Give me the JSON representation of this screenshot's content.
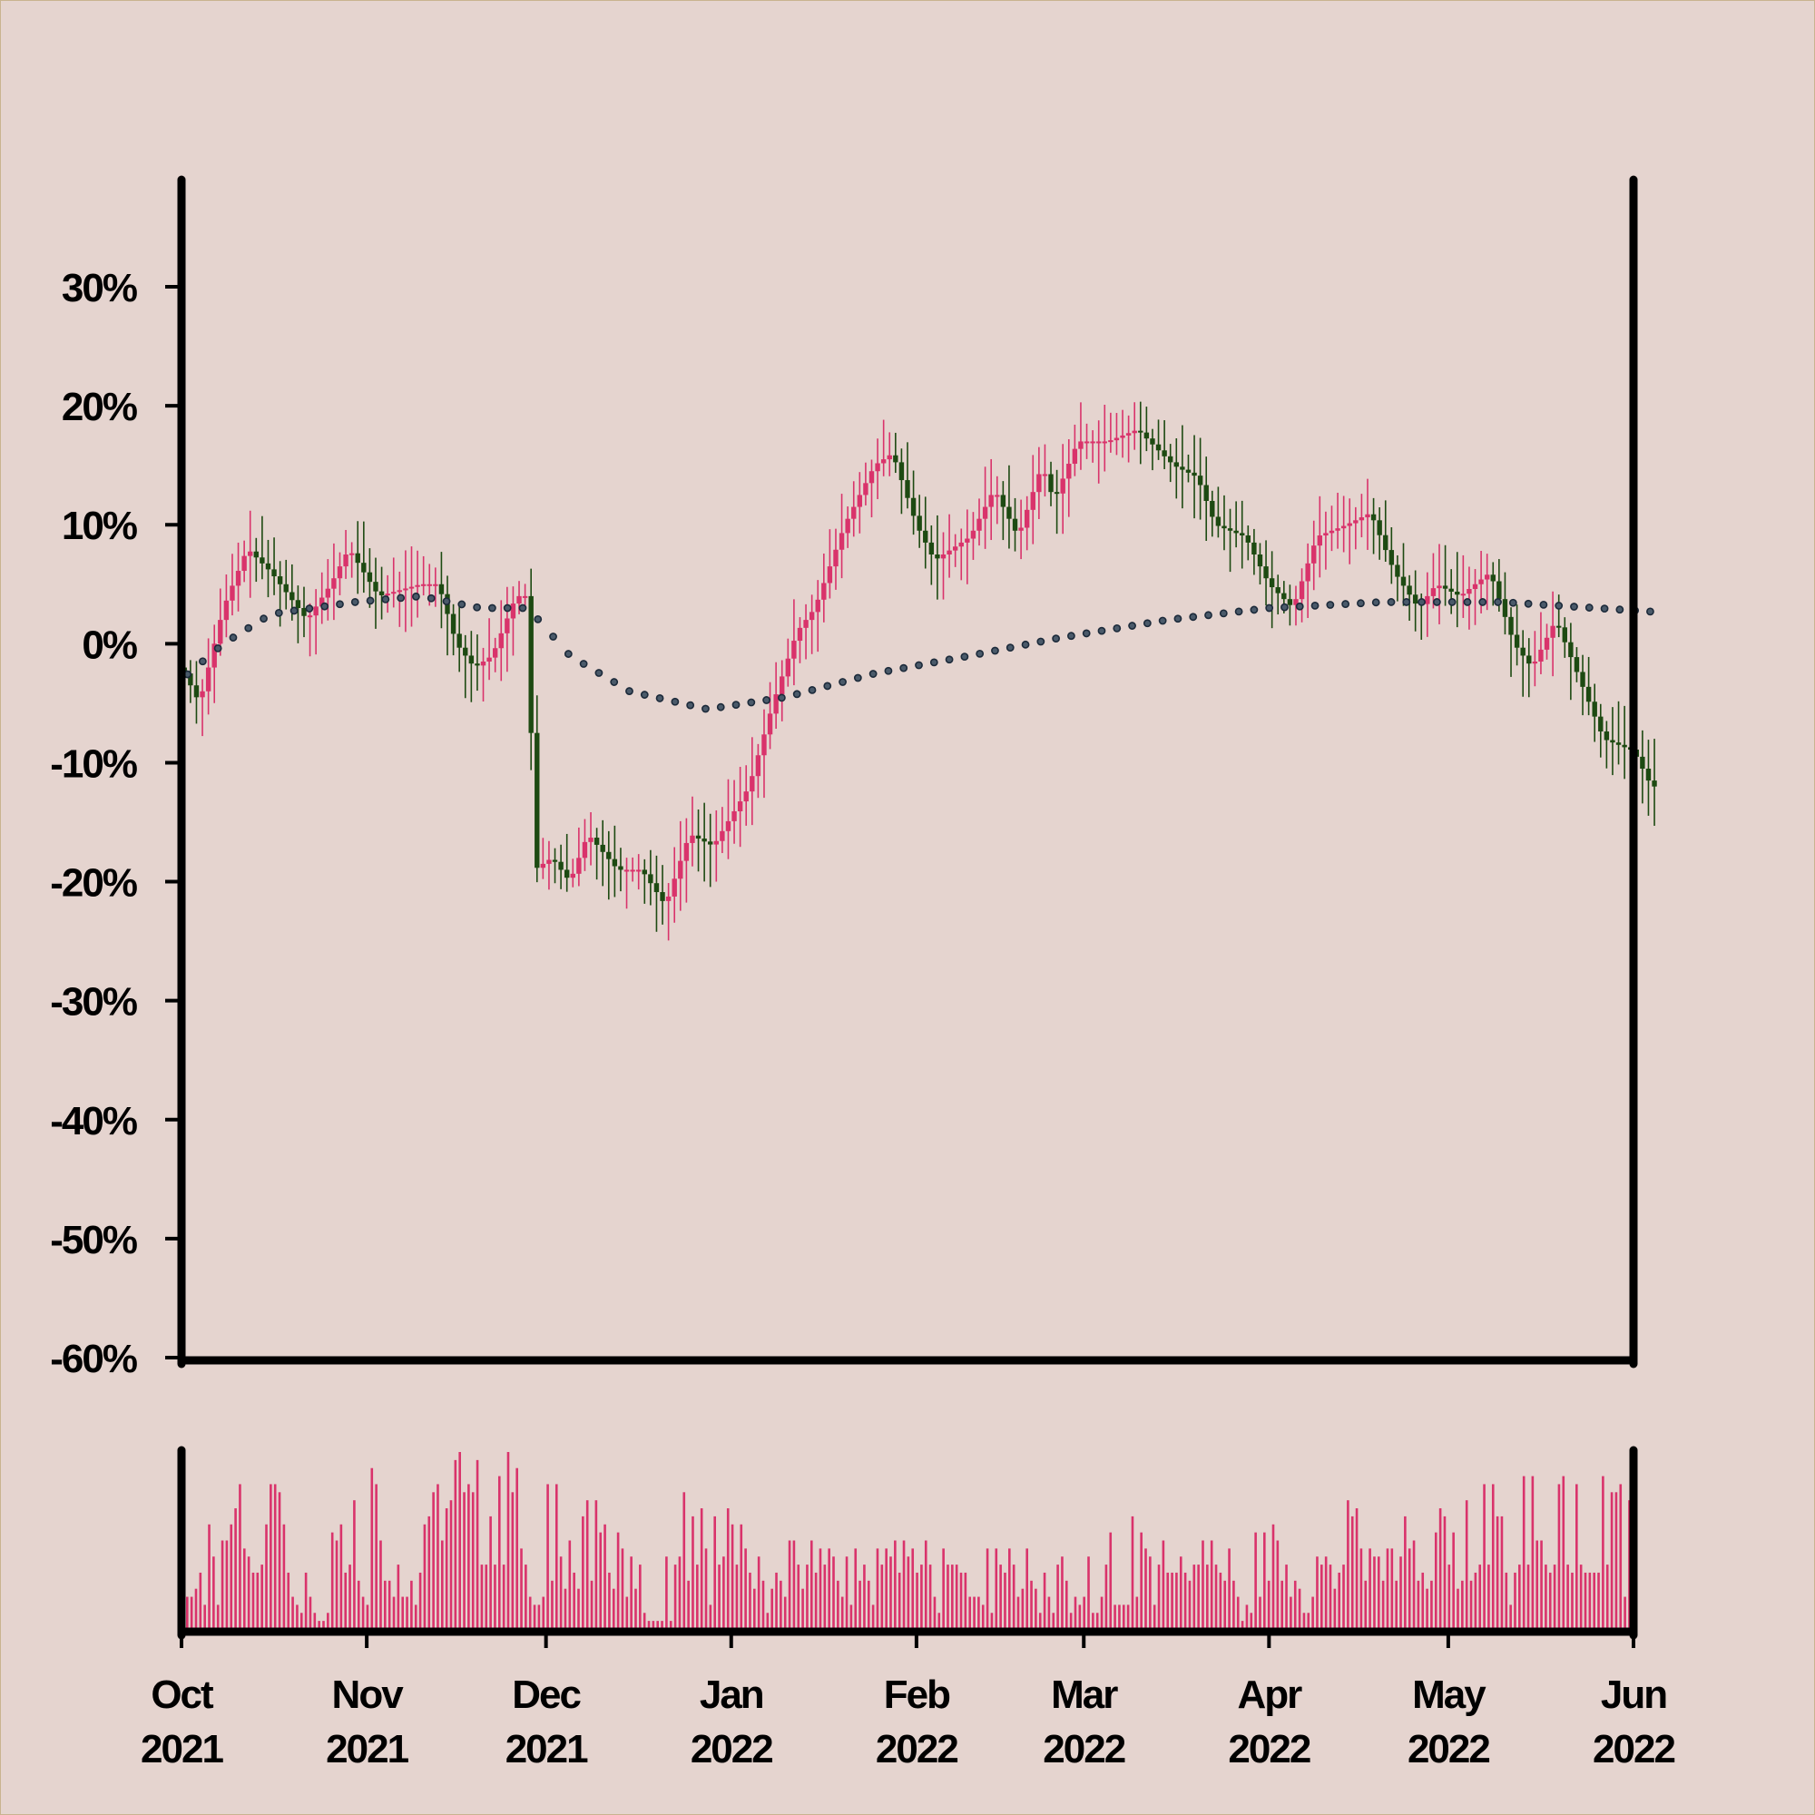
{
  "colors": {
    "background": "#e5d4cf",
    "up_candle": "#d9336b",
    "down_candle": "#1d4a12",
    "moving_average": "#1c2a3a",
    "volume": "#d9336b",
    "axis": "#000000"
  },
  "chart_data": {
    "type": "candlestick",
    "title": "",
    "xlabel": "",
    "ylabel": "",
    "y_tick_labels": [
      "30%",
      "20%",
      "10%",
      "0%",
      "-10%",
      "-20%",
      "-30%",
      "-40%",
      "-50%",
      "-60%"
    ],
    "y_tick_values": [
      30,
      20,
      10,
      0,
      -10,
      -20,
      -30,
      -40,
      -50,
      -60
    ],
    "ylim": [
      -60,
      39
    ],
    "x_tick_labels": [
      {
        "month": "Oct",
        "year": "2021",
        "date": "2021-10-01"
      },
      {
        "month": "Nov",
        "year": "2021",
        "date": "2021-11-01"
      },
      {
        "month": "Dec",
        "year": "2021",
        "date": "2021-12-01"
      },
      {
        "month": "Jan",
        "year": "2022",
        "date": "2022-01-01"
      },
      {
        "month": "Feb",
        "year": "2022",
        "date": "2022-02-01"
      },
      {
        "month": "Mar",
        "year": "2022",
        "date": "2022-03-01"
      },
      {
        "month": "Apr",
        "year": "2022",
        "date": "2022-04-01"
      },
      {
        "month": "May",
        "year": "2022",
        "date": "2022-05-01"
      },
      {
        "month": "Jun",
        "year": "2022",
        "date": "2022-06-01"
      }
    ],
    "xlim": [
      "2021-10-01",
      "2022-06-01"
    ],
    "close_path": [
      {
        "date": "2021-10-01",
        "close": -2
      },
      {
        "date": "2021-10-04",
        "close": -5
      },
      {
        "date": "2021-10-08",
        "close": 3
      },
      {
        "date": "2021-10-12",
        "close": 8
      },
      {
        "date": "2021-10-16",
        "close": 6
      },
      {
        "date": "2021-10-22",
        "close": 2
      },
      {
        "date": "2021-10-26",
        "close": 5
      },
      {
        "date": "2021-10-29",
        "close": 8
      },
      {
        "date": "2021-11-03",
        "close": 4
      },
      {
        "date": "2021-11-10",
        "close": 5
      },
      {
        "date": "2021-11-13",
        "close": 5
      },
      {
        "date": "2021-11-16",
        "close": 0
      },
      {
        "date": "2021-11-19",
        "close": -2
      },
      {
        "date": "2021-11-22",
        "close": -1
      },
      {
        "date": "2021-11-26",
        "close": 4
      },
      {
        "date": "2021-11-28",
        "close": 4
      },
      {
        "date": "2021-11-29",
        "close": -19
      },
      {
        "date": "2021-12-02",
        "close": -18
      },
      {
        "date": "2021-12-05",
        "close": -20
      },
      {
        "date": "2021-12-08",
        "close": -16
      },
      {
        "date": "2021-12-13",
        "close": -19
      },
      {
        "date": "2021-12-17",
        "close": -19
      },
      {
        "date": "2021-12-21",
        "close": -22
      },
      {
        "date": "2021-12-25",
        "close": -16
      },
      {
        "date": "2021-12-29",
        "close": -17
      },
      {
        "date": "2022-01-04",
        "close": -12
      },
      {
        "date": "2022-01-08",
        "close": -5
      },
      {
        "date": "2022-01-12",
        "close": 1
      },
      {
        "date": "2022-01-15",
        "close": 3
      },
      {
        "date": "2022-01-20",
        "close": 10
      },
      {
        "date": "2022-01-25",
        "close": 15
      },
      {
        "date": "2022-01-28",
        "close": 16
      },
      {
        "date": "2022-02-01",
        "close": 10
      },
      {
        "date": "2022-02-04",
        "close": 7
      },
      {
        "date": "2022-02-10",
        "close": 9
      },
      {
        "date": "2022-02-14",
        "close": 13
      },
      {
        "date": "2022-02-18",
        "close": 9
      },
      {
        "date": "2022-02-22",
        "close": 15
      },
      {
        "date": "2022-02-24",
        "close": 12
      },
      {
        "date": "2022-02-28",
        "close": 17
      },
      {
        "date": "2022-03-05",
        "close": 17
      },
      {
        "date": "2022-03-10",
        "close": 18
      },
      {
        "date": "2022-03-16",
        "close": 15
      },
      {
        "date": "2022-03-20",
        "close": 14
      },
      {
        "date": "2022-03-23",
        "close": 10
      },
      {
        "date": "2022-03-28",
        "close": 9
      },
      {
        "date": "2022-04-01",
        "close": 5
      },
      {
        "date": "2022-04-05",
        "close": 3
      },
      {
        "date": "2022-04-09",
        "close": 9
      },
      {
        "date": "2022-04-14",
        "close": 10
      },
      {
        "date": "2022-04-18",
        "close": 11
      },
      {
        "date": "2022-04-22",
        "close": 6
      },
      {
        "date": "2022-04-26",
        "close": 3
      },
      {
        "date": "2022-04-29",
        "close": 5
      },
      {
        "date": "2022-05-03",
        "close": 4
      },
      {
        "date": "2022-05-08",
        "close": 6
      },
      {
        "date": "2022-05-12",
        "close": 0
      },
      {
        "date": "2022-05-15",
        "close": -2
      },
      {
        "date": "2022-05-19",
        "close": 2
      },
      {
        "date": "2022-05-23",
        "close": -3
      },
      {
        "date": "2022-05-27",
        "close": -8
      },
      {
        "date": "2022-06-01",
        "close": -9
      },
      {
        "date": "2022-06-04",
        "close": -12
      }
    ],
    "moving_average_path": [
      {
        "date": "2021-10-01",
        "value": -3
      },
      {
        "date": "2021-10-08",
        "value": 0
      },
      {
        "date": "2021-10-16",
        "value": 2.5
      },
      {
        "date": "2021-10-30",
        "value": 3.5
      },
      {
        "date": "2021-11-10",
        "value": 4
      },
      {
        "date": "2021-11-20",
        "value": 3
      },
      {
        "date": "2021-11-28",
        "value": 3
      },
      {
        "date": "2021-12-05",
        "value": -1
      },
      {
        "date": "2021-12-15",
        "value": -4
      },
      {
        "date": "2021-12-28",
        "value": -5.5
      },
      {
        "date": "2022-01-10",
        "value": -4.5
      },
      {
        "date": "2022-01-25",
        "value": -2.5
      },
      {
        "date": "2022-02-10",
        "value": -1
      },
      {
        "date": "2022-02-25",
        "value": 0.5
      },
      {
        "date": "2022-03-15",
        "value": 2
      },
      {
        "date": "2022-04-01",
        "value": 3
      },
      {
        "date": "2022-04-20",
        "value": 3.5
      },
      {
        "date": "2022-05-10",
        "value": 3.5
      },
      {
        "date": "2022-06-04",
        "value": 2.7
      }
    ],
    "volume_relative": [
      0.2,
      0.2,
      0.25,
      0.35,
      0.15,
      0.65,
      0.45,
      0.15,
      0.55,
      0.55,
      0.65,
      0.75,
      0.9,
      0.5,
      0.45,
      0.35,
      0.35,
      0.4,
      0.65,
      0.9,
      0.9,
      0.85,
      0.65,
      0.35,
      0.2,
      0.15,
      0.1,
      0.35,
      0.2,
      0.1,
      0.05,
      0.05,
      0.1,
      0.6,
      0.55,
      0.65,
      0.35,
      0.4,
      0.8,
      0.3,
      0.2,
      0.15,
      1.0,
      0.9,
      0.55,
      0.3,
      0.3,
      0.2,
      0.4,
      0.2,
      0.2,
      0.3,
      0.15,
      0.35,
      0.65,
      0.7,
      0.85,
      0.9,
      0.55,
      0.75,
      0.8,
      1.05,
      1.1,
      0.85,
      0.9,
      0.85,
      1.05,
      0.4,
      0.4,
      0.7,
      0.4,
      0.95,
      0.4,
      1.1,
      0.85,
      1.0,
      0.5,
      0.4,
      0.2,
      0.15,
      0.15,
      0.2,
      0.9,
      0.3,
      0.9,
      0.45,
      0.25,
      0.55,
      0.35,
      0.25,
      0.7,
      0.8,
      0.3,
      0.8,
      0.6,
      0.65,
      0.35,
      0.25,
      0.6,
      0.5,
      0.2,
      0.45,
      0.25,
      0.4,
      0.1,
      0.05,
      0.05,
      0.05,
      0.05,
      0.45,
      0.05,
      0.4,
      0.45,
      0.85,
      0.3,
      0.7,
      0.4,
      0.75,
      0.5,
      0.15,
      0.7,
      0.4,
      0.45,
      0.75,
      0.65,
      0.4,
      0.65,
      0.5,
      0.35,
      0.25,
      0.45,
      0.3,
      0.1,
      0.25,
      0.35,
      0.3,
      0.2,
      0.55,
      0.55,
      0.4,
      0.25,
      0.4,
      0.55,
      0.35,
      0.5,
      0.4,
      0.5,
      0.45,
      0.3,
      0.2,
      0.45,
      0.15,
      0.5,
      0.3,
      0.4,
      0.3,
      0.15,
      0.5,
      0.4,
      0.5,
      0.45,
      0.55,
      0.35,
      0.55,
      0.45,
      0.5,
      0.35,
      0.4,
      0.55,
      0.4,
      0.2,
      0.1,
      0.5,
      0.4,
      0.4,
      0.4,
      0.35,
      0.35,
      0.2,
      0.2,
      0.2,
      0.15,
      0.5,
      0.1,
      0.5,
      0.4,
      0.35,
      0.5,
      0.4,
      0.2,
      0.25,
      0.5,
      0.3,
      0.25,
      0.1,
      0.35,
      0.2,
      0.1,
      0.4,
      0.45,
      0.3,
      0.1,
      0.2,
      0.15,
      0.2,
      0.45,
      0.1,
      0.1,
      0.2,
      0.4,
      0.6,
      0.15,
      0.15,
      0.15,
      0.15,
      0.7,
      0.2,
      0.6,
      0.5,
      0.45,
      0.15,
      0.4,
      0.55,
      0.35,
      0.35,
      0.35,
      0.45,
      0.35,
      0.3,
      0.4,
      0.4,
      0.55,
      0.4,
      0.55,
      0.4,
      0.35,
      0.3,
      0.5,
      0.3,
      0.2,
      0.05,
      0.15,
      0.1,
      0.6,
      0.2,
      0.6,
      0.3,
      0.65,
      0.55,
      0.3,
      0.4,
      0.2,
      0.3,
      0.25,
      0.1,
      0.1,
      0.2,
      0.45,
      0.4,
      0.45,
      0.4,
      0.25,
      0.35,
      0.4,
      0.8,
      0.7,
      0.75,
      0.5,
      0.3,
      0.5,
      0.45,
      0.45,
      0.3,
      0.5,
      0.5,
      0.3,
      0.45,
      0.7,
      0.5,
      0.55,
      0.3,
      0.35,
      0.25,
      0.3,
      0.6,
      0.75,
      0.7,
      0.4,
      0.6,
      0.25,
      0.3,
      0.8,
      0.3,
      0.35,
      0.4,
      0.9,
      0.4,
      0.9,
      0.7,
      0.7,
      0.35,
      0.15,
      0.35,
      0.4,
      0.95,
      0.4,
      0.95,
      0.55,
      0.55,
      0.4,
      0.35,
      0.4,
      0.9,
      0.95,
      0.4,
      0.35,
      0.9,
      0.4,
      0.35,
      0.35,
      0.35,
      0.35,
      0.95,
      0.4,
      0.85,
      0.85,
      0.9,
      0.2,
      0.8
    ]
  }
}
